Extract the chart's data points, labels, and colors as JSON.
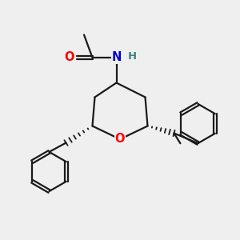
{
  "bg_color": "#efefef",
  "line_color": "#1a1a1a",
  "O_color": "#ff0000",
  "N_color": "#0000cc",
  "H_color": "#3d8080",
  "lw": 1.6,
  "fig_size": [
    3.0,
    3.0
  ],
  "dpi": 100,
  "xlim": [
    0,
    10
  ],
  "ylim": [
    0,
    10
  ]
}
